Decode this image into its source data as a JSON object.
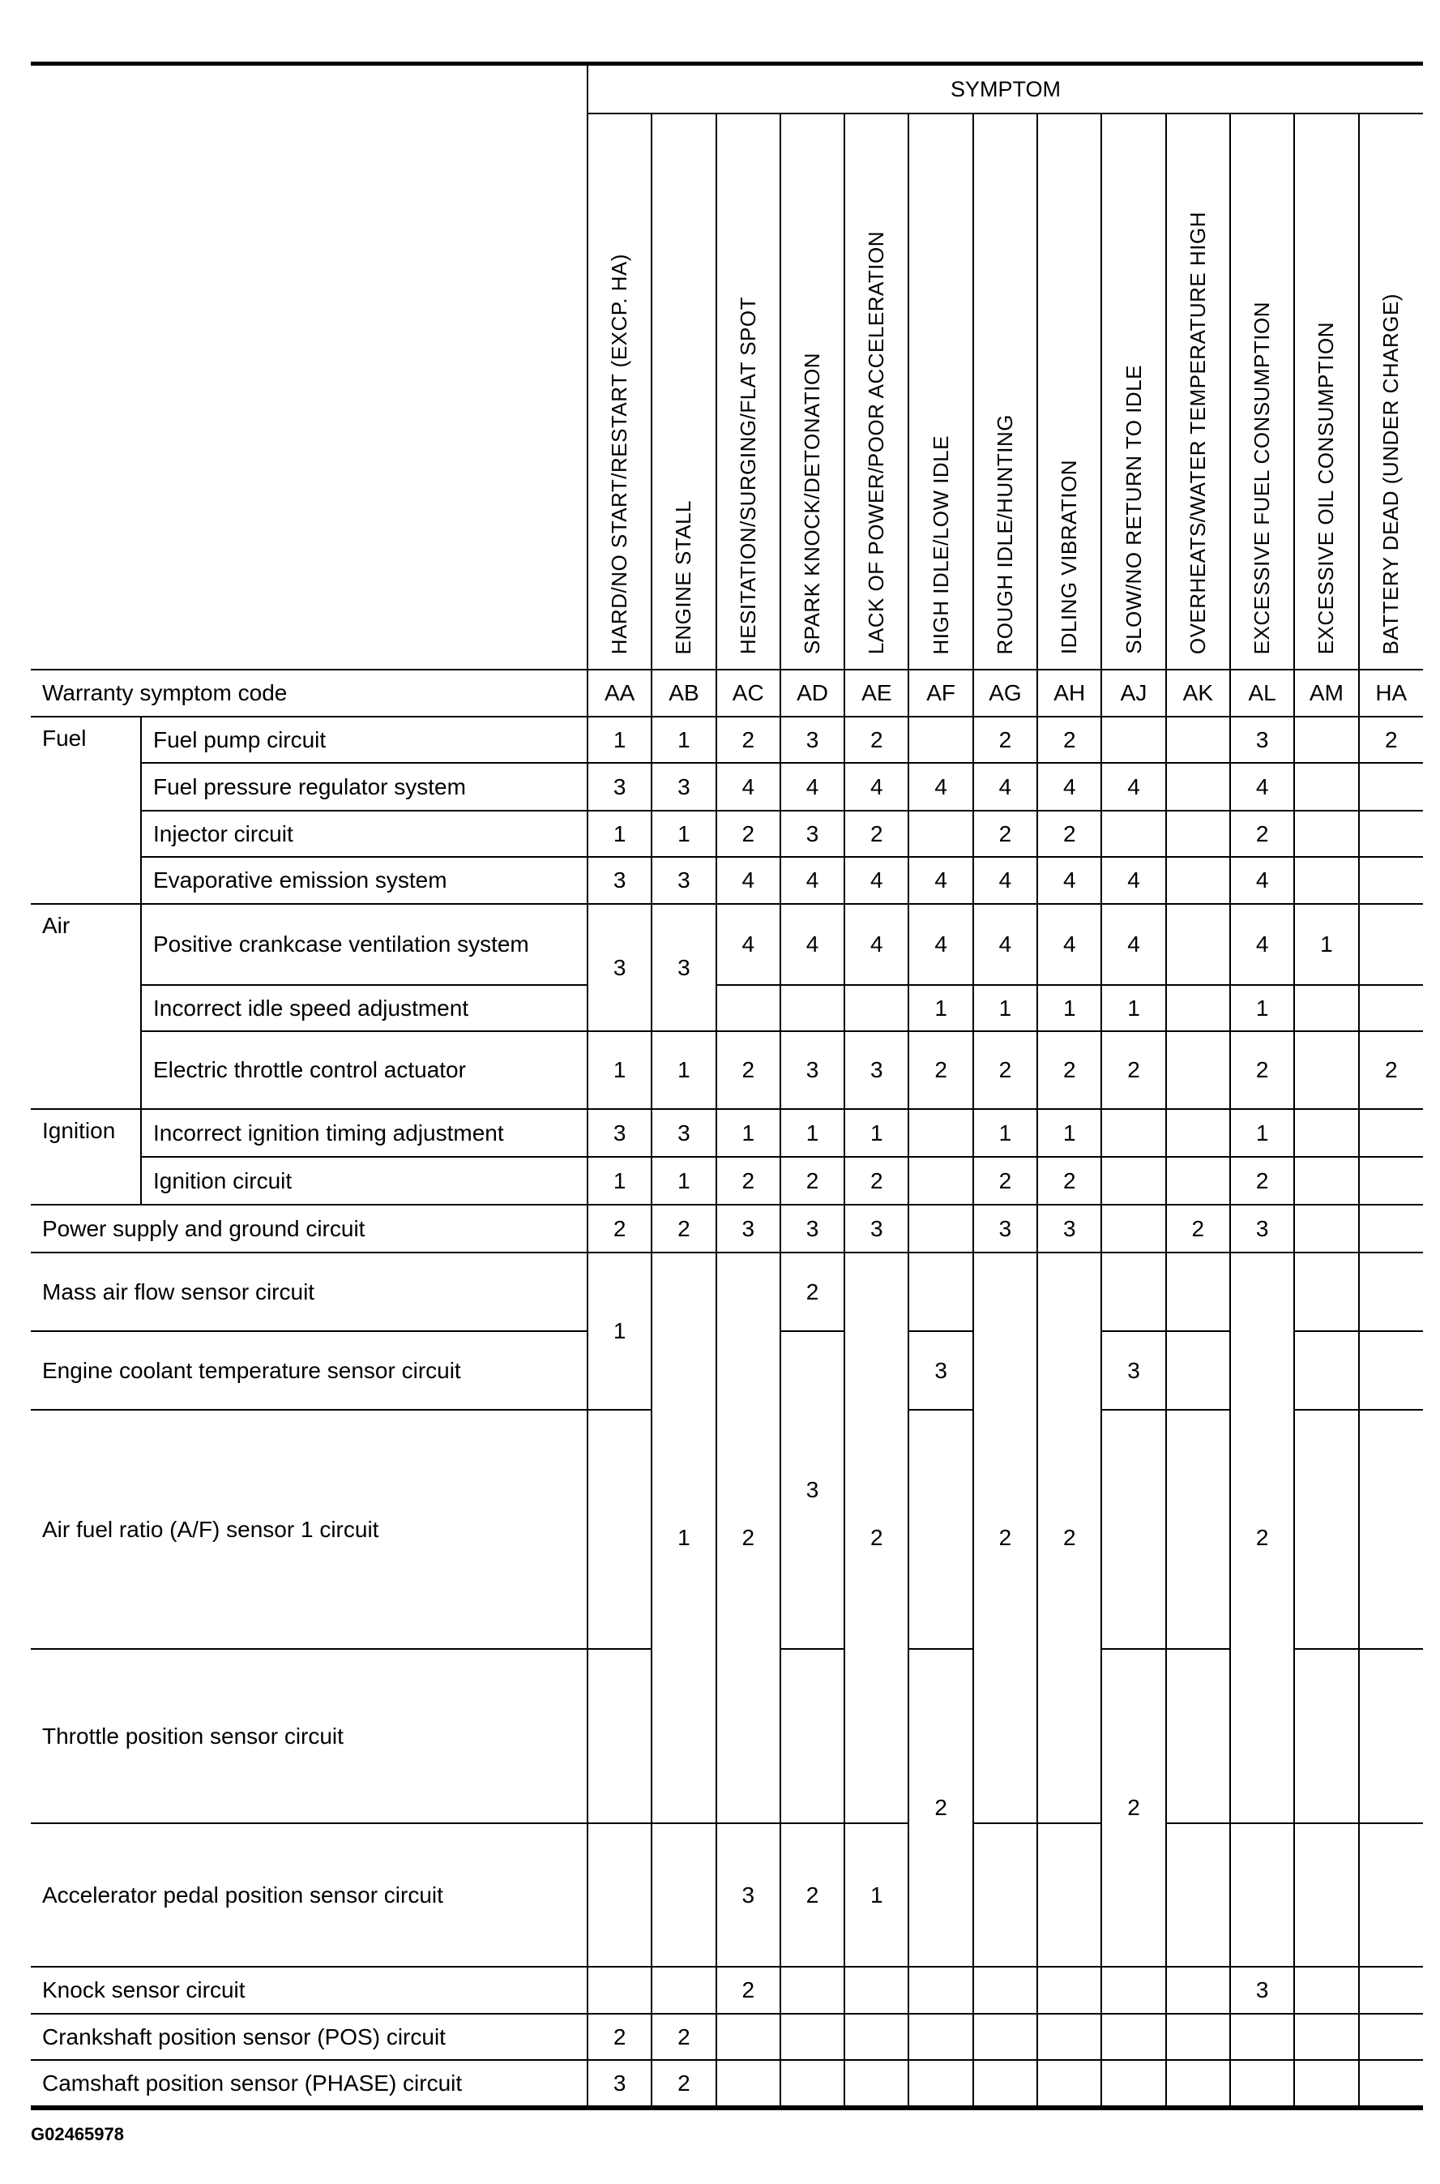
{
  "header": {
    "symptom_title": "SYMPTOM",
    "warranty_label": "Warranty symptom code"
  },
  "columns": [
    {
      "code": "AA",
      "symptom": "HARD/NO START/RESTART (EXCP. HA)"
    },
    {
      "code": "AB",
      "symptom": "ENGINE STALL"
    },
    {
      "code": "AC",
      "symptom": "HESITATION/SURGING/FLAT SPOT"
    },
    {
      "code": "AD",
      "symptom": "SPARK KNOCK/DETONATION"
    },
    {
      "code": "AE",
      "symptom": "LACK OF POWER/POOR ACCELERATION"
    },
    {
      "code": "AF",
      "symptom": "HIGH IDLE/LOW IDLE"
    },
    {
      "code": "AG",
      "symptom": "ROUGH IDLE/HUNTING"
    },
    {
      "code": "AH",
      "symptom": "IDLING VIBRATION"
    },
    {
      "code": "AJ",
      "symptom": "SLOW/NO RETURN TO IDLE"
    },
    {
      "code": "AK",
      "symptom": "OVERHEATS/WATER TEMPERATURE HIGH"
    },
    {
      "code": "AL",
      "symptom": "EXCESSIVE FUEL CONSUMPTION"
    },
    {
      "code": "AM",
      "symptom": "EXCESSIVE OIL CONSUMPTION"
    },
    {
      "code": "HA",
      "symptom": "BATTERY DEAD (UNDER CHARGE)"
    }
  ],
  "groups": [
    "Fuel",
    "Air",
    "Ignition"
  ],
  "rows": [
    {
      "group": "Fuel",
      "item": "Fuel pump circuit",
      "cells": [
        "1",
        "1",
        "2",
        "3",
        "2",
        "",
        "2",
        "2",
        "",
        "",
        "3",
        "",
        "2"
      ]
    },
    {
      "group": "Fuel",
      "item": "Fuel pressure regulator system",
      "cells": [
        "3",
        "3",
        "4",
        "4",
        "4",
        "4",
        "4",
        "4",
        "4",
        "",
        "4",
        "",
        ""
      ]
    },
    {
      "group": "Fuel",
      "item": "Injector circuit",
      "cells": [
        "1",
        "1",
        "2",
        "3",
        "2",
        "",
        "2",
        "2",
        "",
        "",
        "2",
        "",
        ""
      ]
    },
    {
      "group": "Fuel",
      "item": "Evaporative emission system",
      "cells": [
        "3",
        "3",
        "4",
        "4",
        "4",
        "4",
        "4",
        "4",
        "4",
        "",
        "4",
        "",
        ""
      ]
    },
    {
      "group": "Air",
      "item": "Positive crankcase ventilation sys­tem",
      "cells": [
        "3",
        "3",
        "4",
        "4",
        "4",
        "4",
        "4",
        "4",
        "4",
        "",
        "4",
        "1",
        ""
      ]
    },
    {
      "group": "Air",
      "item": "Incorrect idle speed adjustment",
      "cells": [
        "",
        "",
        "",
        "",
        "",
        "1",
        "1",
        "1",
        "1",
        "",
        "1",
        "",
        ""
      ]
    },
    {
      "group": "Air",
      "item": "Electric throttle control actuator",
      "cells": [
        "1",
        "1",
        "2",
        "3",
        "3",
        "2",
        "2",
        "2",
        "2",
        "",
        "2",
        "",
        "2"
      ]
    },
    {
      "group": "Ignition",
      "item": "Incorrect ignition timing adjustment",
      "cells": [
        "3",
        "3",
        "1",
        "1",
        "1",
        "",
        "1",
        "1",
        "",
        "",
        "1",
        "",
        ""
      ]
    },
    {
      "group": "Ignition",
      "item": "Ignition circuit",
      "cells": [
        "1",
        "1",
        "2",
        "2",
        "2",
        "",
        "2",
        "2",
        "",
        "",
        "2",
        "",
        ""
      ]
    },
    {
      "group": "",
      "item": "Power supply and ground circuit",
      "cells": [
        "2",
        "2",
        "3",
        "3",
        "3",
        "",
        "3",
        "3",
        "",
        "2",
        "3",
        "",
        ""
      ]
    },
    {
      "group": "",
      "item": "Mass air flow sensor circuit",
      "cells": [
        "1",
        "1",
        "2",
        "2",
        "2",
        "",
        "2",
        "2",
        "",
        "",
        "2",
        "",
        ""
      ]
    },
    {
      "group": "",
      "item": "Engine coolant temperature sensor circuit",
      "cells": [
        "",
        "",
        "",
        "3",
        "",
        "3",
        "",
        "",
        "3",
        "",
        "",
        "",
        ""
      ]
    },
    {
      "group": "",
      "item": "Air fuel ratio (A/F) sensor 1 circuit",
      "cells": [
        "",
        "",
        "",
        "",
        "",
        "",
        "",
        "",
        "",
        "",
        "",
        "",
        ""
      ]
    },
    {
      "group": "",
      "item": "Throttle position sensor circuit",
      "cells": [
        "",
        "",
        "",
        "",
        "",
        "2",
        "",
        "",
        "2",
        "",
        "",
        "",
        ""
      ]
    },
    {
      "group": "",
      "item": "Accelerator pedal position sensor circuit",
      "cells": [
        "",
        "",
        "3",
        "2",
        "1",
        "",
        "",
        "",
        "",
        "",
        "",
        "",
        ""
      ]
    },
    {
      "group": "",
      "item": "Knock sensor circuit",
      "cells": [
        "",
        "",
        "2",
        "",
        "",
        "",
        "",
        "",
        "",
        "",
        "3",
        "",
        ""
      ]
    },
    {
      "group": "",
      "item": "Crankshaft position sensor (POS) circuit",
      "cells": [
        "2",
        "2",
        "",
        "",
        "",
        "",
        "",
        "",
        "",
        "",
        "",
        "",
        ""
      ]
    },
    {
      "group": "",
      "item": "Camshaft position sensor (PHASE) circuit",
      "cells": [
        "3",
        "2",
        "",
        "",
        "",
        "",
        "",
        "",
        "",
        "",
        "",
        "",
        ""
      ]
    }
  ],
  "footer": {
    "figure_id": "G02465978"
  }
}
